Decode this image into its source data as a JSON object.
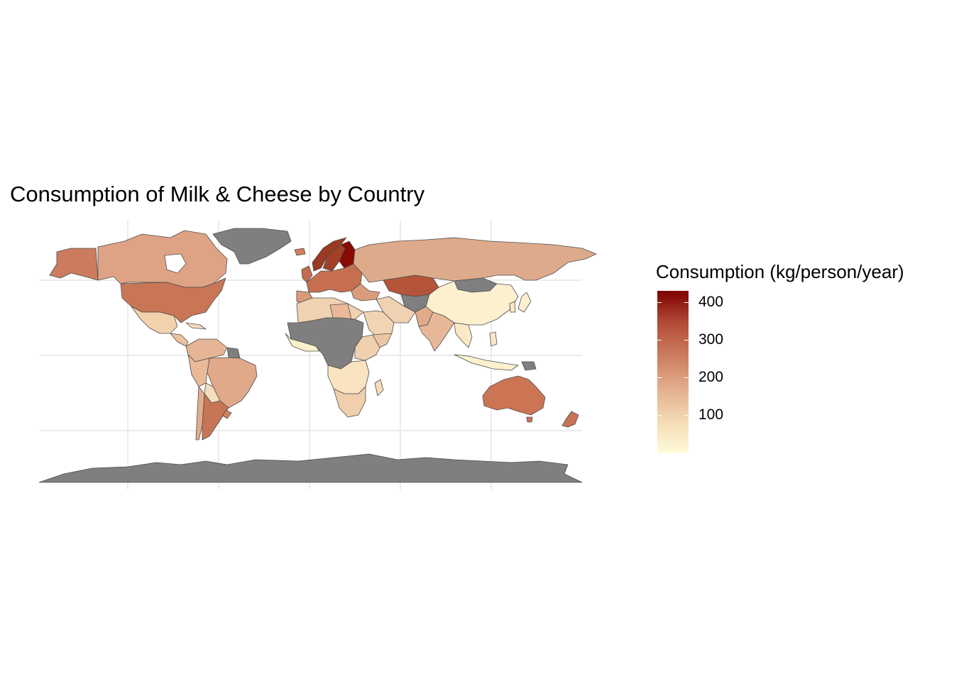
{
  "title": "Consumption of Milk & Cheese by Country",
  "legend": {
    "title": "Consumption (kg/person/year)",
    "colors": [
      "#fffbd8",
      "#f3d9b3",
      "#e2ad8c",
      "#cc7c5e",
      "#b24c37",
      "#7e0000"
    ],
    "range": [
      0,
      430
    ],
    "ticks": [
      {
        "value": 100,
        "label": "100"
      },
      {
        "value": 200,
        "label": "200"
      },
      {
        "value": 300,
        "label": "300"
      },
      {
        "value": 400,
        "label": "400"
      }
    ]
  },
  "chart_data": {
    "type": "choropleth",
    "value_label": "Consumption (kg/person/year)",
    "no_data_color": "#7f7f7f",
    "no_data_regions": [
      "Greenland",
      "Antarctica",
      "Central & Sahel Africa",
      "Mongolia"
    ],
    "regions": [
      {
        "name": "Finland",
        "value": 430
      },
      {
        "name": "Sweden",
        "value": 360
      },
      {
        "name": "Norway",
        "value": 340
      },
      {
        "name": "Kazakhstan",
        "value": 270
      },
      {
        "name": "United States",
        "value": 260
      },
      {
        "name": "Australia",
        "value": 250
      },
      {
        "name": "Western Europe",
        "value": 255
      },
      {
        "name": "Argentina",
        "value": 220
      },
      {
        "name": "New Zealand",
        "value": 220
      },
      {
        "name": "Canada",
        "value": 200
      },
      {
        "name": "Russia",
        "value": 190
      },
      {
        "name": "Brazil",
        "value": 170
      },
      {
        "name": "India",
        "value": 160
      },
      {
        "name": "Mexico",
        "value": 110
      },
      {
        "name": "China",
        "value": 30
      },
      {
        "name": "Southern Africa",
        "value": 110
      }
    ]
  }
}
